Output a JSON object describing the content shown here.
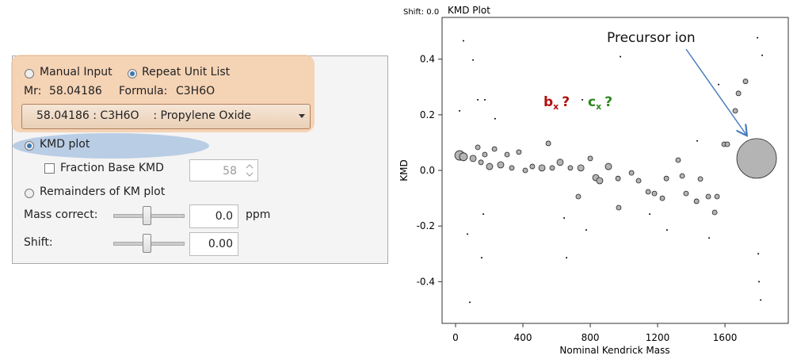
{
  "panel": {
    "manual_input": "Manual Input",
    "repeat_unit_list": "Repeat Unit List",
    "mr_label": "Mr:",
    "mr_value": "58.04186",
    "formula_label": "Formula:",
    "formula_value": "C3H6O",
    "dropdown": "58.04186 : C3H6O    : Propylene Oxide",
    "kmd_plot": "KMD plot",
    "fraction_base_kmd": "Fraction Base KMD",
    "fraction_base_value": "58",
    "remainders": "Remainders of KM plot",
    "mass_correct_label": "Mass correct:",
    "mass_correct_value": "0.0",
    "mass_correct_unit": "ppm",
    "shift_label": "Shift:",
    "shift_value": "0.00"
  },
  "chart_data": {
    "type": "scatter",
    "title": "KMD Plot",
    "subtitle": "Shift: 0.0",
    "x_label": "Nominal Kendrick Mass",
    "y_label": "KMD",
    "xlim": [
      -80,
      1976
    ],
    "ylim": [
      -0.55,
      0.55
    ],
    "xticks": [
      0,
      400,
      800,
      1200,
      1600
    ],
    "yticks": [
      0.4,
      0.2,
      {
        "value": 0,
        "label": "0.0"
      },
      -0.2,
      -0.4
    ],
    "color": "#b4b4b4",
    "annotations": [
      {
        "text": "b",
        "sub": "x",
        "mark": "?",
        "color": "#b01010"
      },
      {
        "text": "c",
        "sub": "x",
        "mark": "?",
        "color": "#2a8a1a"
      },
      {
        "text": "Precursor ion"
      }
    ],
    "x": [
      24,
      47,
      104,
      132,
      151,
      174,
      202,
      231,
      268,
      306,
      334,
      376,
      414,
      456,
      513,
      551,
      574,
      621,
      682,
      744,
      800,
      833,
      856,
      908,
      965,
      1045,
      1087,
      1144,
      1181,
      1228,
      1252,
      1322,
      1346,
      1369,
      1431,
      1454,
      1501,
      1539,
      1553,
      1595,
      1614,
      1661,
      1680,
      1722,
      1788,
      969,
      729,
      47,
      104,
      24,
      132,
      174,
      235,
      979,
      1793,
      1821,
      71,
      165,
      155,
      85,
      645,
      776,
      753,
      1798,
      1812,
      1802,
      1153,
      1506,
      659,
      1256,
      1562,
      1435
    ],
    "y": [
      0.054,
      0.049,
      0.043,
      0.083,
      0.029,
      0.057,
      0.014,
      0.077,
      0.02,
      0.057,
      0.009,
      0.066,
      0,
      0.014,
      0.009,
      0.097,
      0.009,
      0.029,
      0.009,
      0.009,
      0.043,
      -0.026,
      -0.037,
      0.014,
      -0.029,
      -0.009,
      -0.037,
      -0.077,
      -0.083,
      -0.1,
      -0.029,
      0.037,
      -0.02,
      -0.083,
      -0.111,
      -0.031,
      -0.094,
      -0.151,
      -0.094,
      0.094,
      0.094,
      0.214,
      0.277,
      0.32,
      0.043,
      -0.134,
      -0.094,
      0.466,
      0.397,
      0.214,
      0.254,
      0.254,
      0.186,
      0.409,
      0.477,
      0.414,
      -0.229,
      -0.157,
      -0.314,
      -0.474,
      -0.171,
      -0.214,
      0.254,
      -0.3,
      -0.466,
      -0.4,
      -0.157,
      -0.243,
      -0.314,
      -0.214,
      0.309,
      0.106
    ],
    "sizes": [
      6,
      5,
      4,
      3,
      3,
      3,
      4,
      3,
      4,
      3,
      3,
      3,
      3,
      3,
      4,
      3,
      3,
      4,
      3,
      4,
      3,
      4,
      4,
      4,
      3,
      3,
      3,
      3,
      3,
      3,
      3,
      3,
      3,
      3,
      3,
      3,
      3,
      3,
      3,
      3,
      3,
      3,
      3,
      3,
      25,
      3,
      3,
      1,
      1,
      1,
      1,
      1,
      1,
      1,
      1,
      1,
      1,
      1,
      1,
      1,
      1,
      1,
      1,
      1,
      1,
      1,
      1,
      1,
      1,
      1,
      1,
      1
    ]
  }
}
